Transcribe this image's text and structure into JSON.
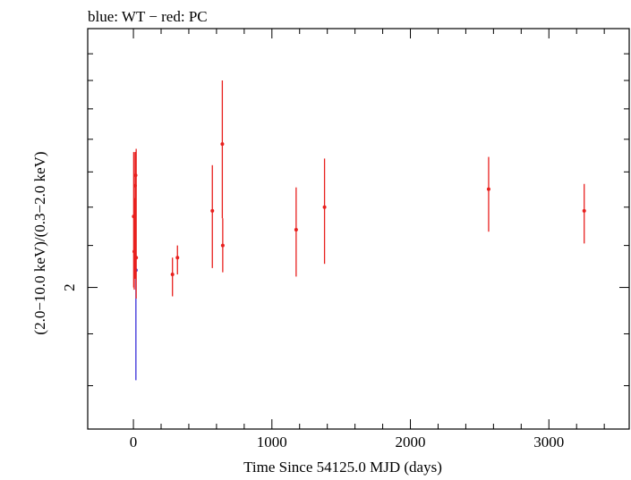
{
  "chart_data": {
    "type": "scatter",
    "title": "blue: WT − red: PC",
    "xlabel": "Time Since 54125.0 MJD (days)",
    "ylabel": "(2.0−10.0 keV)/(0.3−2.0 keV)",
    "xlim": [
      -330,
      3580
    ],
    "ylim": [
      1.45,
      3.6
    ],
    "y_scale": "log",
    "x_ticks": [
      0,
      1000,
      2000,
      3000
    ],
    "x_tick_labels": [
      "0",
      "1000",
      "2000",
      "3000"
    ],
    "y_ticks": [
      2
    ],
    "y_tick_labels": [
      "2"
    ],
    "grid": false,
    "series": [
      {
        "name": "WT",
        "color": "#3a30d8",
        "points": [
          {
            "x": 18,
            "y": 2.08,
            "ylo": 1.62,
            "yhi": 2.18
          }
        ]
      },
      {
        "name": "PC",
        "color": "#e8201e",
        "points": [
          {
            "x": 2,
            "y": 2.35,
            "ylo": 2.0,
            "yhi": 2.72
          },
          {
            "x": 6,
            "y": 2.17,
            "ylo": 1.99,
            "yhi": 2.45
          },
          {
            "x": 12,
            "y": 2.52,
            "ylo": 2.04,
            "yhi": 2.72
          },
          {
            "x": 16,
            "y": 2.58,
            "ylo": 2.15,
            "yhi": 2.72
          },
          {
            "x": 20,
            "y": 2.14,
            "ylo": 1.95,
            "yhi": 2.74
          },
          {
            "x": 282,
            "y": 2.06,
            "ylo": 1.96,
            "yhi": 2.14
          },
          {
            "x": 318,
            "y": 2.14,
            "ylo": 2.06,
            "yhi": 2.2
          },
          {
            "x": 570,
            "y": 2.38,
            "ylo": 2.09,
            "yhi": 2.64
          },
          {
            "x": 642,
            "y": 2.77,
            "ylo": 2.34,
            "yhi": 3.2
          },
          {
            "x": 645,
            "y": 2.2,
            "ylo": 2.07,
            "yhi": 2.34
          },
          {
            "x": 1175,
            "y": 2.28,
            "ylo": 2.05,
            "yhi": 2.51
          },
          {
            "x": 1380,
            "y": 2.4,
            "ylo": 2.11,
            "yhi": 2.68
          },
          {
            "x": 2565,
            "y": 2.5,
            "ylo": 2.27,
            "yhi": 2.69
          },
          {
            "x": 3255,
            "y": 2.38,
            "ylo": 2.21,
            "yhi": 2.53
          }
        ]
      }
    ]
  }
}
